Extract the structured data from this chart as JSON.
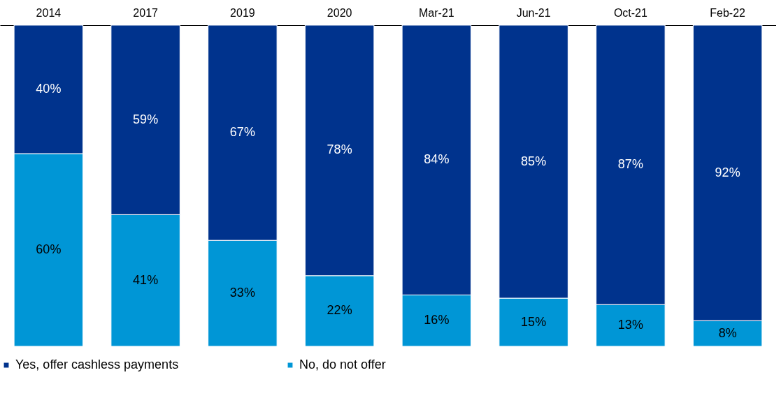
{
  "chart_data": {
    "type": "bar",
    "stacked": true,
    "categories": [
      "2014",
      "2017",
      "2019",
      "2020",
      "Mar-21",
      "Jun-21",
      "Oct-21",
      "Feb-22"
    ],
    "series": [
      {
        "name": "No, do not offer",
        "color": "#0096d6",
        "values": [
          60,
          41,
          33,
          22,
          16,
          15,
          13,
          8
        ],
        "value_labels": [
          "60%",
          "41%",
          "33%",
          "22%",
          "16%",
          "15%",
          "13%",
          "8%"
        ]
      },
      {
        "name": "Yes, offer cashless payments",
        "color": "#00338d",
        "values": [
          40,
          59,
          67,
          78,
          84,
          85,
          87,
          92
        ],
        "value_labels": [
          "40%",
          "59%",
          "67%",
          "78%",
          "84%",
          "85%",
          "87%",
          "92%"
        ]
      }
    ],
    "ylim": [
      0,
      100
    ],
    "tick_labels": "x",
    "legend": "bottom"
  }
}
